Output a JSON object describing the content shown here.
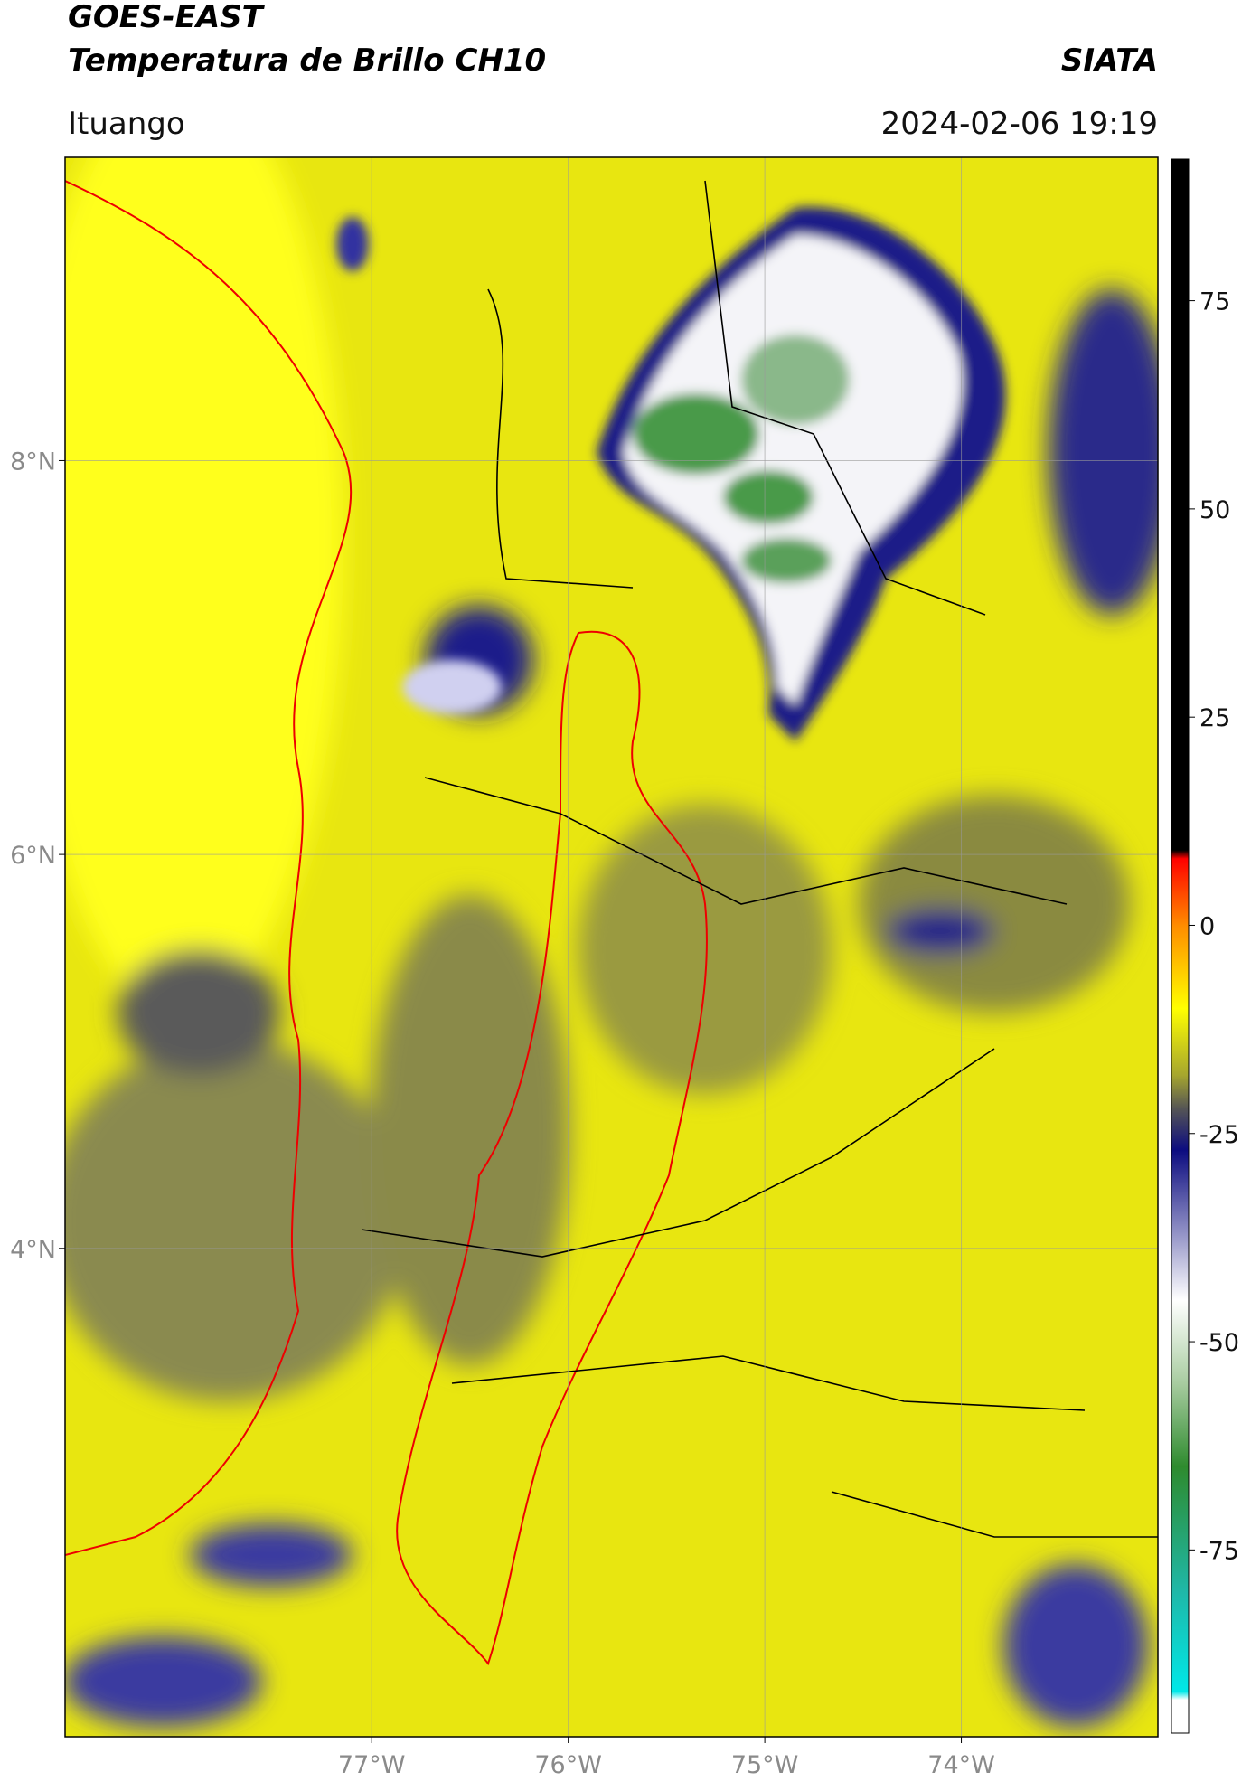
{
  "chart_data": {
    "type": "map",
    "title": "GOES-EAST",
    "subtitle": "Temperatura de Brillo CH10",
    "source": "SIATA",
    "location": "Ituango",
    "datetime": "2024-02-06 19:19",
    "xlim": [
      -78.56,
      -73.0
    ],
    "ylim": [
      1.52,
      9.54
    ],
    "xticks": [
      {
        "value": -77,
        "label": "77°W"
      },
      {
        "value": -76,
        "label": "76°W"
      },
      {
        "value": -75,
        "label": "75°W"
      },
      {
        "value": -74,
        "label": "74°W"
      }
    ],
    "yticks": [
      {
        "value": 8,
        "label": "8°N"
      },
      {
        "value": 6,
        "label": "6°N"
      },
      {
        "value": 4,
        "label": "4°N"
      }
    ],
    "grid": true,
    "colorbar_lim": [
      -97,
      92
    ],
    "colorbar_ticks": [
      75,
      50,
      25,
      0,
      -25,
      -50,
      -75
    ],
    "colormap": [
      {
        "value": 92,
        "color": "#000000"
      },
      {
        "value": 9,
        "color": "#000000"
      },
      {
        "value": 8,
        "color": "#ff0000"
      },
      {
        "value": 0,
        "color": "#ff8c00"
      },
      {
        "value": -10,
        "color": "#ffff00"
      },
      {
        "value": -18,
        "color": "#a6a62e"
      },
      {
        "value": -22,
        "color": "#555555"
      },
      {
        "value": -27,
        "color": "#0c0c80"
      },
      {
        "value": -45,
        "color": "#ffffff"
      },
      {
        "value": -55,
        "color": "#a8cca0"
      },
      {
        "value": -65,
        "color": "#2e8b2e"
      },
      {
        "value": -80,
        "color": "#1fb8a8"
      },
      {
        "value": -92,
        "color": "#00e8e8"
      },
      {
        "value": -93,
        "color": "#ffffff"
      },
      {
        "value": -97,
        "color": "#ffffff"
      }
    ]
  }
}
